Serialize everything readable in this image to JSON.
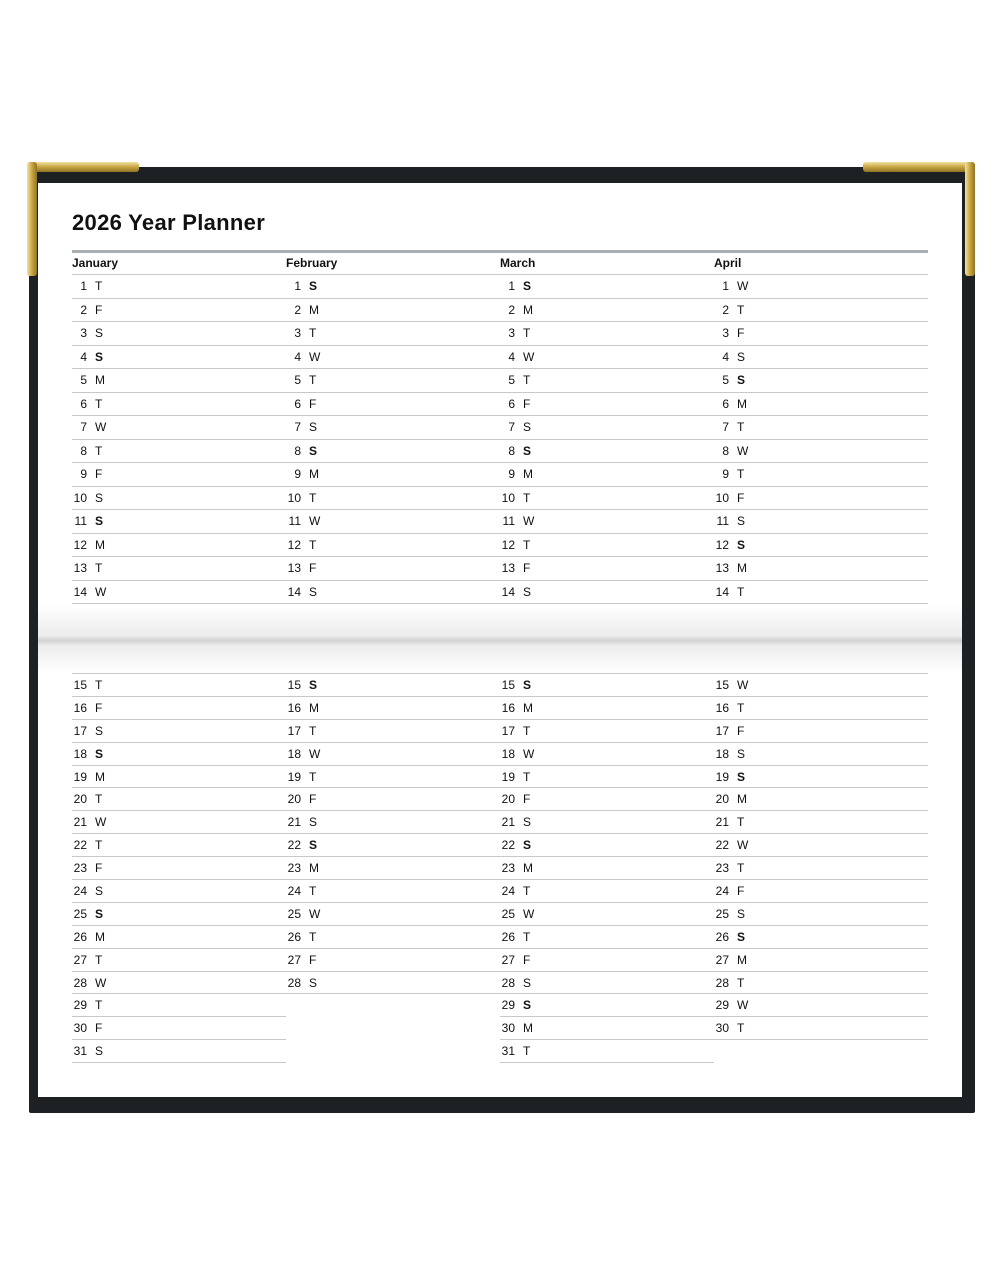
{
  "title": "2026 Year Planner",
  "colors": {
    "cover": "#1e2124",
    "gold": "#c8a543",
    "rule": "#a9b0b4"
  },
  "months": [
    {
      "name": "January",
      "days": "TFSSMTWTFSSMTWTFSSMTWTFSSMTWTFS",
      "bold_days": [
        4,
        11,
        18,
        25
      ]
    },
    {
      "name": "February",
      "days": "SMTWTFSSMTWTFSSMTWTFSSMTWTFS",
      "bold_days": [
        1,
        8,
        15,
        22
      ]
    },
    {
      "name": "March",
      "days": "SMTWTFSSMTWTFSSMTWTFSSMTWTFSSMT",
      "bold_days": [
        1,
        8,
        15,
        22,
        29
      ]
    },
    {
      "name": "April",
      "days": "WTFSSMTWTFSSMTWTFSSMTWTFSSMTWT",
      "bold_days": [
        5,
        12,
        19,
        26
      ]
    }
  ]
}
